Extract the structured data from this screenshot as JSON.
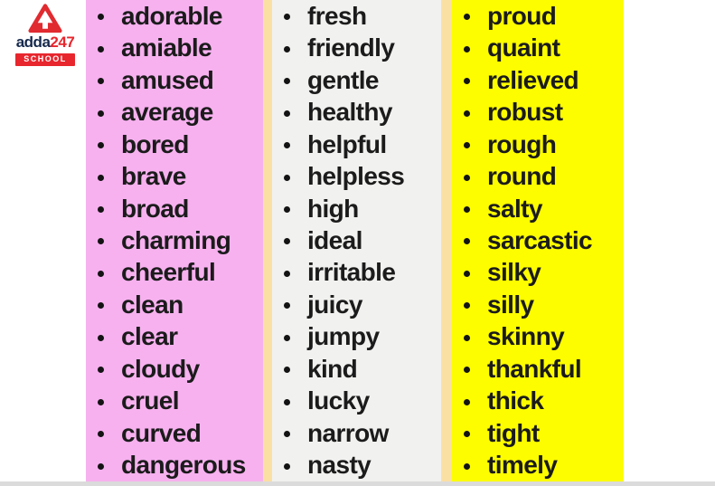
{
  "page": {
    "background": "#FFFFFF"
  },
  "logo": {
    "brand": "adda",
    "number": "247",
    "school_label": "SCHOOL",
    "triangle_color": "#E02B30",
    "brand_color": "#16294D",
    "number_color": "#E8262D",
    "badge_bg": "#E8262D",
    "badge_text_color": "#FFFFFF"
  },
  "list": {
    "bullet_color": "#131313",
    "text_color": "#1B1B1B",
    "divider_color": "#FBE0A4",
    "bottom_strip_color": "#DBDBDB",
    "columns": [
      {
        "name": "column-1",
        "background": "#F7B1EF",
        "words": [
          "adorable",
          "amiable",
          "amused",
          "average",
          "bored",
          "brave",
          "broad",
          "charming",
          "cheerful",
          "clean",
          "clear",
          "cloudy",
          "cruel",
          "curved",
          "dangerous"
        ]
      },
      {
        "name": "column-2",
        "background": "#F1F1EF",
        "words": [
          "fresh",
          "friendly",
          "gentle",
          "healthy",
          "helpful",
          "helpless",
          "high",
          "ideal",
          "irritable",
          "juicy",
          "jumpy",
          "kind",
          "lucky",
          "narrow",
          "nasty"
        ]
      },
      {
        "name": "column-3",
        "background": "#FDFD00",
        "words": [
          "proud",
          "quaint",
          "relieved",
          "robust",
          "rough",
          "round",
          "salty",
          "sarcastic",
          "silky",
          "silly",
          "skinny",
          "thankful",
          "thick",
          "tight",
          "timely"
        ]
      }
    ]
  }
}
